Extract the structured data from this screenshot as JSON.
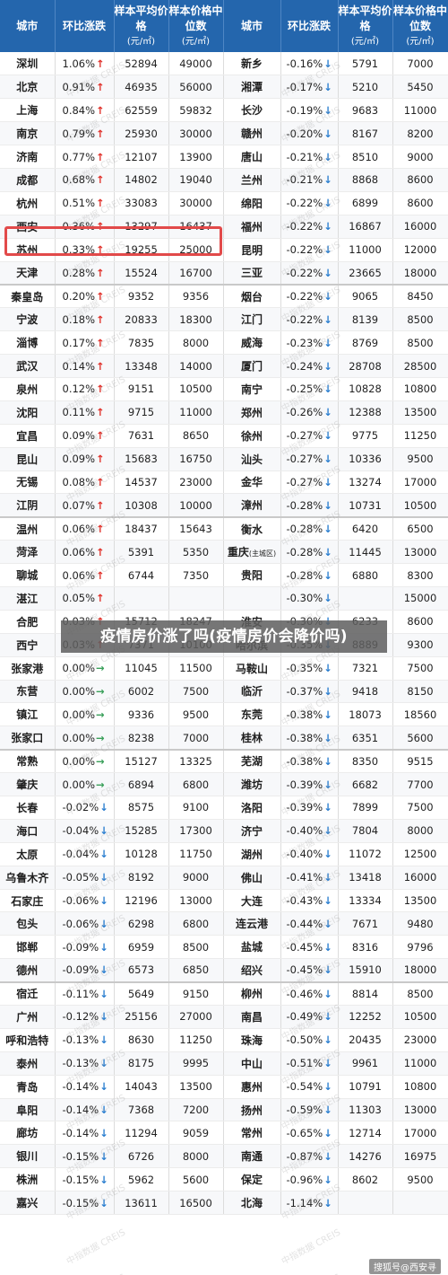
{
  "headers": {
    "city": "城市",
    "change": "环比涨跌",
    "avg_price": "样本平均价格",
    "median_price": "样本价格中位数",
    "unit": "(元/㎡)"
  },
  "arrows": {
    "up": "↑",
    "down": "↓",
    "flat": "→"
  },
  "title_banner": "疫情房价涨了吗(疫情房价会降价吗)",
  "source_tag": "搜狐号@西安寻",
  "watermark": "中指数据 CREIS",
  "highlight": {
    "row_index": 7,
    "side": "left",
    "color": "#e24a4a"
  },
  "colors": {
    "header_bg": "#2466ad",
    "up": "#e0322b",
    "down": "#2c7fd0",
    "flat": "#3aa05a"
  },
  "rows": [
    {
      "l": {
        "city": "深圳",
        "chg": "1.06%",
        "dir": "up",
        "avg": "52894",
        "med": "49000"
      },
      "r": {
        "city": "新乡",
        "chg": "-0.16%",
        "dir": "down",
        "avg": "5791",
        "med": "7000"
      }
    },
    {
      "l": {
        "city": "北京",
        "chg": "0.91%",
        "dir": "up",
        "avg": "46935",
        "med": "56000"
      },
      "r": {
        "city": "湘潭",
        "chg": "-0.17%",
        "dir": "down",
        "avg": "5210",
        "med": "5450"
      }
    },
    {
      "l": {
        "city": "上海",
        "chg": "0.84%",
        "dir": "up",
        "avg": "62559",
        "med": "59832"
      },
      "r": {
        "city": "长沙",
        "chg": "-0.19%",
        "dir": "down",
        "avg": "9683",
        "med": "11000"
      }
    },
    {
      "l": {
        "city": "南京",
        "chg": "0.79%",
        "dir": "up",
        "avg": "25930",
        "med": "30000"
      },
      "r": {
        "city": "赣州",
        "chg": "-0.20%",
        "dir": "down",
        "avg": "8167",
        "med": "8200"
      }
    },
    {
      "l": {
        "city": "济南",
        "chg": "0.77%",
        "dir": "up",
        "avg": "12107",
        "med": "13900"
      },
      "r": {
        "city": "唐山",
        "chg": "-0.21%",
        "dir": "down",
        "avg": "8510",
        "med": "9000"
      }
    },
    {
      "l": {
        "city": "成都",
        "chg": "0.68%",
        "dir": "up",
        "avg": "14802",
        "med": "19040"
      },
      "r": {
        "city": "兰州",
        "chg": "-0.21%",
        "dir": "down",
        "avg": "8868",
        "med": "8600"
      }
    },
    {
      "l": {
        "city": "杭州",
        "chg": "0.51%",
        "dir": "up",
        "avg": "33083",
        "med": "30000"
      },
      "r": {
        "city": "绵阳",
        "chg": "-0.22%",
        "dir": "down",
        "avg": "6899",
        "med": "8600"
      }
    },
    {
      "l": {
        "city": "西安",
        "chg": "0.36%",
        "dir": "up",
        "avg": "13297",
        "med": "16437"
      },
      "r": {
        "city": "福州",
        "chg": "-0.22%",
        "dir": "down",
        "avg": "16867",
        "med": "16000"
      }
    },
    {
      "l": {
        "city": "苏州",
        "chg": "0.33%",
        "dir": "up",
        "avg": "19255",
        "med": "25000"
      },
      "r": {
        "city": "昆明",
        "chg": "-0.22%",
        "dir": "down",
        "avg": "11000",
        "med": "12000"
      }
    },
    {
      "l": {
        "city": "天津",
        "chg": "0.28%",
        "dir": "up",
        "avg": "15524",
        "med": "16700"
      },
      "r": {
        "city": "三亚",
        "chg": "-0.22%",
        "dir": "down",
        "avg": "23665",
        "med": "18000"
      }
    },
    {
      "l": {
        "city": "秦皇岛",
        "chg": "0.20%",
        "dir": "up",
        "avg": "9352",
        "med": "9356"
      },
      "r": {
        "city": "烟台",
        "chg": "-0.22%",
        "dir": "down",
        "avg": "9065",
        "med": "8450"
      }
    },
    {
      "l": {
        "city": "宁波",
        "chg": "0.18%",
        "dir": "up",
        "avg": "20833",
        "med": "18300"
      },
      "r": {
        "city": "江门",
        "chg": "-0.22%",
        "dir": "down",
        "avg": "8139",
        "med": "8500"
      }
    },
    {
      "l": {
        "city": "淄博",
        "chg": "0.17%",
        "dir": "up",
        "avg": "7835",
        "med": "8000"
      },
      "r": {
        "city": "威海",
        "chg": "-0.23%",
        "dir": "down",
        "avg": "8769",
        "med": "8500"
      }
    },
    {
      "l": {
        "city": "武汉",
        "chg": "0.14%",
        "dir": "up",
        "avg": "13348",
        "med": "14000"
      },
      "r": {
        "city": "厦门",
        "chg": "-0.24%",
        "dir": "down",
        "avg": "28708",
        "med": "28500"
      }
    },
    {
      "l": {
        "city": "泉州",
        "chg": "0.12%",
        "dir": "up",
        "avg": "9151",
        "med": "10500"
      },
      "r": {
        "city": "南宁",
        "chg": "-0.25%",
        "dir": "down",
        "avg": "10828",
        "med": "10800"
      }
    },
    {
      "l": {
        "city": "沈阳",
        "chg": "0.11%",
        "dir": "up",
        "avg": "9715",
        "med": "11000"
      },
      "r": {
        "city": "郑州",
        "chg": "-0.26%",
        "dir": "down",
        "avg": "12388",
        "med": "13500"
      }
    },
    {
      "l": {
        "city": "宜昌",
        "chg": "0.09%",
        "dir": "up",
        "avg": "7631",
        "med": "8650"
      },
      "r": {
        "city": "徐州",
        "chg": "-0.27%",
        "dir": "down",
        "avg": "9775",
        "med": "11250"
      }
    },
    {
      "l": {
        "city": "昆山",
        "chg": "0.09%",
        "dir": "up",
        "avg": "15683",
        "med": "16750"
      },
      "r": {
        "city": "汕头",
        "chg": "-0.27%",
        "dir": "down",
        "avg": "10336",
        "med": "9500"
      }
    },
    {
      "l": {
        "city": "无锡",
        "chg": "0.08%",
        "dir": "up",
        "avg": "14537",
        "med": "23000"
      },
      "r": {
        "city": "金华",
        "chg": "-0.27%",
        "dir": "down",
        "avg": "13274",
        "med": "17000"
      }
    },
    {
      "l": {
        "city": "江阴",
        "chg": "0.07%",
        "dir": "up",
        "avg": "10308",
        "med": "10000"
      },
      "r": {
        "city": "漳州",
        "chg": "-0.28%",
        "dir": "down",
        "avg": "10731",
        "med": "10500"
      }
    },
    {
      "l": {
        "city": "温州",
        "chg": "0.06%",
        "dir": "up",
        "avg": "18437",
        "med": "15643"
      },
      "r": {
        "city": "衡水",
        "chg": "-0.28%",
        "dir": "down",
        "avg": "6420",
        "med": "6500"
      }
    },
    {
      "l": {
        "city": "菏泽",
        "chg": "0.06%",
        "dir": "up",
        "avg": "5391",
        "med": "5350"
      },
      "r": {
        "city": "重庆",
        "suffix": "(主城区)",
        "chg": "-0.28%",
        "dir": "down",
        "avg": "11445",
        "med": "13000"
      }
    },
    {
      "l": {
        "city": "聊城",
        "chg": "0.06%",
        "dir": "up",
        "avg": "6744",
        "med": "7350"
      },
      "r": {
        "city": "贵阳",
        "chg": "-0.28%",
        "dir": "down",
        "avg": "6880",
        "med": "8300"
      }
    },
    {
      "l": {
        "city": "湛江",
        "chg": "0.05%",
        "dir": "up",
        "avg": "",
        "med": ""
      },
      "r": {
        "city": "",
        "chg": "-0.30%",
        "dir": "down",
        "avg": "",
        "med": "15000"
      }
    },
    {
      "l": {
        "city": "合肥",
        "chg": "0.03%",
        "dir": "up",
        "avg": "15712",
        "med": "18247"
      },
      "r": {
        "city": "淮安",
        "chg": "-0.30%",
        "dir": "down",
        "avg": "6233",
        "med": "8600"
      }
    },
    {
      "l": {
        "city": "西宁",
        "chg": "0.03%",
        "dir": "up",
        "avg": "7371",
        "med": "10100"
      },
      "r": {
        "city": "哈尔滨",
        "chg": "-0.35%",
        "dir": "down",
        "avg": "8889",
        "med": "9300"
      }
    },
    {
      "l": {
        "city": "张家港",
        "chg": "0.00%",
        "dir": "flat",
        "avg": "11045",
        "med": "11500"
      },
      "r": {
        "city": "马鞍山",
        "chg": "-0.35%",
        "dir": "down",
        "avg": "7321",
        "med": "7500"
      }
    },
    {
      "l": {
        "city": "东营",
        "chg": "0.00%",
        "dir": "flat",
        "avg": "6002",
        "med": "7500"
      },
      "r": {
        "city": "临沂",
        "chg": "-0.37%",
        "dir": "down",
        "avg": "9418",
        "med": "8150"
      }
    },
    {
      "l": {
        "city": "镇江",
        "chg": "0.00%",
        "dir": "flat",
        "avg": "9336",
        "med": "9500"
      },
      "r": {
        "city": "东莞",
        "chg": "-0.38%",
        "dir": "down",
        "avg": "18073",
        "med": "18560"
      }
    },
    {
      "l": {
        "city": "张家口",
        "chg": "0.00%",
        "dir": "flat",
        "avg": "8238",
        "med": "7000"
      },
      "r": {
        "city": "桂林",
        "chg": "-0.38%",
        "dir": "down",
        "avg": "6351",
        "med": "5600"
      }
    },
    {
      "l": {
        "city": "常熟",
        "chg": "0.00%",
        "dir": "flat",
        "avg": "15127",
        "med": "13325"
      },
      "r": {
        "city": "芜湖",
        "chg": "-0.38%",
        "dir": "down",
        "avg": "8350",
        "med": "9515"
      }
    },
    {
      "l": {
        "city": "肇庆",
        "chg": "0.00%",
        "dir": "flat",
        "avg": "6894",
        "med": "6800"
      },
      "r": {
        "city": "潍坊",
        "chg": "-0.39%",
        "dir": "down",
        "avg": "6682",
        "med": "7700"
      }
    },
    {
      "l": {
        "city": "长春",
        "chg": "-0.02%",
        "dir": "down",
        "avg": "8575",
        "med": "9100"
      },
      "r": {
        "city": "洛阳",
        "chg": "-0.39%",
        "dir": "down",
        "avg": "7899",
        "med": "7500"
      }
    },
    {
      "l": {
        "city": "海口",
        "chg": "-0.04%",
        "dir": "down",
        "avg": "15285",
        "med": "17300"
      },
      "r": {
        "city": "济宁",
        "chg": "-0.40%",
        "dir": "down",
        "avg": "7804",
        "med": "8000"
      }
    },
    {
      "l": {
        "city": "太原",
        "chg": "-0.04%",
        "dir": "down",
        "avg": "10128",
        "med": "11750"
      },
      "r": {
        "city": "湖州",
        "chg": "-0.40%",
        "dir": "down",
        "avg": "11072",
        "med": "12500"
      }
    },
    {
      "l": {
        "city": "乌鲁木齐",
        "chg": "-0.05%",
        "dir": "down",
        "avg": "8192",
        "med": "9000"
      },
      "r": {
        "city": "佛山",
        "chg": "-0.41%",
        "dir": "down",
        "avg": "13418",
        "med": "16000"
      }
    },
    {
      "l": {
        "city": "石家庄",
        "chg": "-0.06%",
        "dir": "down",
        "avg": "12196",
        "med": "13000"
      },
      "r": {
        "city": "大连",
        "chg": "-0.43%",
        "dir": "down",
        "avg": "13334",
        "med": "13500"
      }
    },
    {
      "l": {
        "city": "包头",
        "chg": "-0.06%",
        "dir": "down",
        "avg": "6298",
        "med": "6800"
      },
      "r": {
        "city": "连云港",
        "chg": "-0.44%",
        "dir": "down",
        "avg": "7671",
        "med": "9480"
      }
    },
    {
      "l": {
        "city": "邯郸",
        "chg": "-0.09%",
        "dir": "down",
        "avg": "6959",
        "med": "8500"
      },
      "r": {
        "city": "盐城",
        "chg": "-0.45%",
        "dir": "down",
        "avg": "8316",
        "med": "9796"
      }
    },
    {
      "l": {
        "city": "德州",
        "chg": "-0.09%",
        "dir": "down",
        "avg": "6573",
        "med": "6850"
      },
      "r": {
        "city": "绍兴",
        "chg": "-0.45%",
        "dir": "down",
        "avg": "15910",
        "med": "18000"
      }
    },
    {
      "l": {
        "city": "宿迁",
        "chg": "-0.11%",
        "dir": "down",
        "avg": "5649",
        "med": "9150"
      },
      "r": {
        "city": "柳州",
        "chg": "-0.46%",
        "dir": "down",
        "avg": "8814",
        "med": "8500"
      }
    },
    {
      "l": {
        "city": "广州",
        "chg": "-0.12%",
        "dir": "down",
        "avg": "25156",
        "med": "27000"
      },
      "r": {
        "city": "南昌",
        "chg": "-0.49%",
        "dir": "down",
        "avg": "12252",
        "med": "10500"
      }
    },
    {
      "l": {
        "city": "呼和浩特",
        "chg": "-0.13%",
        "dir": "down",
        "avg": "8630",
        "med": "11250"
      },
      "r": {
        "city": "珠海",
        "chg": "-0.50%",
        "dir": "down",
        "avg": "20435",
        "med": "23000"
      }
    },
    {
      "l": {
        "city": "泰州",
        "chg": "-0.13%",
        "dir": "down",
        "avg": "8175",
        "med": "9995"
      },
      "r": {
        "city": "中山",
        "chg": "-0.51%",
        "dir": "down",
        "avg": "9961",
        "med": "11000"
      }
    },
    {
      "l": {
        "city": "青岛",
        "chg": "-0.14%",
        "dir": "down",
        "avg": "14043",
        "med": "13500"
      },
      "r": {
        "city": "惠州",
        "chg": "-0.54%",
        "dir": "down",
        "avg": "10791",
        "med": "10800"
      }
    },
    {
      "l": {
        "city": "阜阳",
        "chg": "-0.14%",
        "dir": "down",
        "avg": "7368",
        "med": "7200"
      },
      "r": {
        "city": "扬州",
        "chg": "-0.59%",
        "dir": "down",
        "avg": "11303",
        "med": "13000"
      }
    },
    {
      "l": {
        "city": "廊坊",
        "chg": "-0.14%",
        "dir": "down",
        "avg": "11294",
        "med": "9059"
      },
      "r": {
        "city": "常州",
        "chg": "-0.65%",
        "dir": "down",
        "avg": "12714",
        "med": "17000"
      }
    },
    {
      "l": {
        "city": "银川",
        "chg": "-0.15%",
        "dir": "down",
        "avg": "6726",
        "med": "8000"
      },
      "r": {
        "city": "南通",
        "chg": "-0.87%",
        "dir": "down",
        "avg": "14276",
        "med": "16975"
      }
    },
    {
      "l": {
        "city": "株洲",
        "chg": "-0.15%",
        "dir": "down",
        "avg": "5962",
        "med": "5600"
      },
      "r": {
        "city": "保定",
        "chg": "-0.96%",
        "dir": "down",
        "avg": "8602",
        "med": "9500"
      }
    },
    {
      "l": {
        "city": "嘉兴",
        "chg": "-0.15%",
        "dir": "down",
        "avg": "13611",
        "med": "16500"
      },
      "r": {
        "city": "北海",
        "chg": "-1.14%",
        "dir": "down",
        "avg": "",
        "med": ""
      }
    }
  ]
}
